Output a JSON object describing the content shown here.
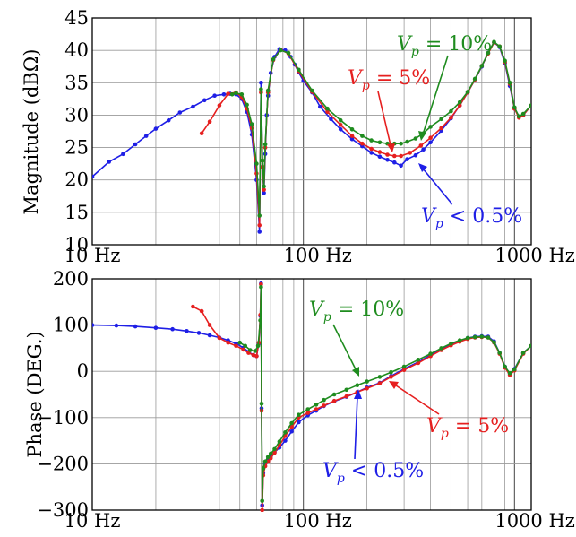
{
  "chart_data": [
    {
      "type": "line",
      "ylabel": "Magnitude (dBΩ)",
      "xscale": "log",
      "xlim": [
        10,
        1200
      ],
      "ylim": [
        10,
        45
      ],
      "x_tick_labels": [
        "10 Hz",
        "100 Hz",
        "1000 Hz"
      ],
      "y_ticks": [
        10,
        15,
        20,
        25,
        30,
        35,
        40,
        45
      ],
      "grid": true,
      "series": [
        {
          "name": "Vp < 0.5%",
          "color": "#1f1fe6",
          "x": [
            10,
            12,
            14,
            16,
            18,
            20,
            23,
            26,
            30,
            34,
            38,
            42,
            45,
            48,
            51,
            54,
            57,
            60,
            62,
            63,
            64,
            65,
            66,
            67,
            68,
            70,
            73,
            77,
            82,
            87,
            91,
            95,
            100,
            110,
            120,
            135,
            150,
            170,
            190,
            210,
            230,
            250,
            270,
            290,
            310,
            340,
            370,
            400,
            450,
            500,
            550,
            600,
            650,
            700,
            750,
            800,
            850,
            900,
            950,
            1000,
            1050,
            1100,
            1200
          ],
          "y": [
            20.5,
            22.8,
            24.0,
            25.5,
            26.8,
            27.9,
            29.2,
            30.4,
            31.3,
            32.3,
            33.0,
            33.2,
            33.3,
            33.2,
            32.5,
            30.5,
            27.0,
            20.0,
            12.0,
            35.0,
            22.0,
            18.0,
            24.0,
            30.0,
            33.0,
            36.5,
            39.0,
            40.2,
            40.0,
            39.0,
            37.8,
            36.6,
            35.3,
            33.5,
            31.3,
            29.4,
            27.8,
            26.3,
            25.2,
            24.2,
            23.6,
            23.1,
            22.7,
            22.2,
            23.2,
            23.8,
            24.7,
            25.8,
            27.6,
            29.5,
            31.5,
            33.5,
            35.5,
            37.5,
            39.6,
            41.2,
            40.5,
            38.0,
            34.5,
            31.0,
            29.8,
            30.0,
            31.5
          ]
        },
        {
          "name": "Vp = 5%",
          "color": "#e61f1f",
          "x": [
            33,
            36,
            40,
            44,
            48,
            51,
            54,
            57,
            60,
            62,
            63,
            64,
            65,
            66,
            68,
            72,
            78,
            85,
            95,
            110,
            130,
            150,
            170,
            190,
            210,
            230,
            250,
            270,
            290,
            320,
            360,
            400,
            450,
            500,
            550,
            600,
            650,
            700,
            750,
            800,
            850,
            900,
            950,
            1000,
            1050,
            1100,
            1200
          ],
          "y": [
            27.2,
            29.0,
            31.5,
            33.3,
            33.5,
            32.8,
            31.0,
            28.0,
            21.0,
            13.0,
            33.5,
            22.0,
            18.5,
            25.0,
            33.5,
            38.5,
            40.1,
            39.5,
            36.8,
            33.6,
            30.5,
            28.5,
            26.8,
            25.6,
            24.8,
            24.3,
            23.9,
            23.7,
            23.7,
            24.2,
            25.3,
            26.5,
            28.0,
            29.6,
            31.5,
            33.5,
            35.5,
            37.6,
            39.5,
            41.2,
            40.6,
            38.2,
            34.8,
            31.0,
            29.6,
            30.0,
            31.5
          ]
        },
        {
          "name": "Vp = 10%",
          "color": "#1f8c1f",
          "x": [
            46,
            48,
            51,
            54,
            57,
            60,
            62,
            63,
            64,
            65,
            66,
            68,
            72,
            78,
            85,
            95,
            110,
            130,
            150,
            170,
            190,
            210,
            230,
            250,
            270,
            290,
            310,
            340,
            370,
            400,
            450,
            500,
            550,
            600,
            650,
            700,
            750,
            800,
            850,
            900,
            950,
            1000,
            1050,
            1100,
            1200
          ],
          "y": [
            33.2,
            33.4,
            33.2,
            31.6,
            28.6,
            22.5,
            14.5,
            34.0,
            23.0,
            19.0,
            25.5,
            33.8,
            38.6,
            40.0,
            39.6,
            37.0,
            33.8,
            31.0,
            29.2,
            27.8,
            26.8,
            26.1,
            25.8,
            25.6,
            25.6,
            25.6,
            25.9,
            26.4,
            27.2,
            28.2,
            29.4,
            30.6,
            32.0,
            33.6,
            35.6,
            37.6,
            39.6,
            41.3,
            40.6,
            38.4,
            35.0,
            31.2,
            29.8,
            30.2,
            31.5
          ]
        }
      ],
      "annotations": [
        {
          "base": "V",
          "sub": "p",
          "rest": " = 10%",
          "color": "#1f8c1f"
        },
        {
          "base": "V",
          "sub": "p",
          "rest": " = 5%",
          "color": "#e61f1f"
        },
        {
          "base": "V",
          "sub": "p",
          "rest": " < 0.5%",
          "color": "#1f1fe6"
        }
      ]
    },
    {
      "type": "line",
      "ylabel": "Phase (DEG.)",
      "xscale": "log",
      "xlim": [
        10,
        1200
      ],
      "ylim": [
        -300,
        200
      ],
      "x_tick_labels": [
        "10 Hz",
        "100 Hz",
        "1000 Hz"
      ],
      "y_tick_labels": [
        "−300",
        "−200",
        "−100",
        "0",
        "100",
        "200"
      ],
      "y_ticks": [
        -300,
        -200,
        -100,
        0,
        100,
        200
      ],
      "grid": true,
      "series": [
        {
          "name": "Vp < 0.5%",
          "color": "#1f1fe6",
          "x": [
            10,
            13,
            16,
            20,
            24,
            28,
            32,
            36,
            40,
            44,
            48,
            52,
            55,
            58,
            60,
            61.5,
            62.5,
            63,
            63.4,
            63.8,
            64.5,
            66,
            68,
            70,
            73,
            77,
            82,
            88,
            95,
            105,
            115,
            125,
            140,
            160,
            180,
            200,
            230,
            260,
            300,
            350,
            400,
            450,
            500,
            550,
            600,
            650,
            700,
            750,
            800,
            850,
            900,
            950,
            1000,
            1100,
            1200
          ],
          "y": [
            100,
            99,
            97,
            94,
            91,
            87,
            83,
            78,
            73,
            67,
            60,
            51,
            42,
            35,
            33,
            60,
            120,
            190,
            -80,
            -290,
            -220,
            -200,
            -190,
            -185,
            -175,
            -165,
            -150,
            -130,
            -110,
            -95,
            -85,
            -75,
            -65,
            -55,
            -45,
            -35,
            -25,
            -10,
            5,
            20,
            35,
            48,
            58,
            66,
            72,
            75,
            76,
            75,
            65,
            40,
            10,
            -5,
            5,
            40,
            55
          ]
        },
        {
          "name": "Vp = 5%",
          "color": "#e61f1f",
          "x": [
            30,
            33,
            36,
            40,
            44,
            48,
            52,
            55,
            58,
            60,
            61.5,
            62.5,
            63,
            63.4,
            63.8,
            64.5,
            66,
            68,
            70,
            73,
            77,
            82,
            88,
            95,
            105,
            115,
            125,
            140,
            160,
            180,
            200,
            230,
            260,
            300,
            350,
            400,
            450,
            500,
            550,
            600,
            650,
            700,
            750,
            800,
            850,
            900,
            950,
            1000,
            1100,
            1200
          ],
          "y": [
            140,
            130,
            100,
            72,
            62,
            55,
            47,
            40,
            35,
            33,
            62,
            122,
            188,
            -85,
            -300,
            -225,
            -205,
            -195,
            -188,
            -176,
            -160,
            -140,
            -120,
            -100,
            -90,
            -82,
            -74,
            -64,
            -54,
            -45,
            -37,
            -26,
            -12,
            3,
            18,
            33,
            46,
            56,
            64,
            70,
            73,
            74,
            73,
            62,
            38,
            8,
            -8,
            2,
            38,
            55
          ]
        },
        {
          "name": "Vp = 10%",
          "color": "#1f8c1f",
          "x": [
            50,
            53,
            56,
            59,
            61,
            62.5,
            63,
            63.4,
            63.8,
            64.5,
            66,
            68,
            70,
            73,
            77,
            82,
            88,
            95,
            105,
            115,
            125,
            140,
            160,
            180,
            200,
            230,
            260,
            300,
            350,
            400,
            450,
            500,
            550,
            600,
            650,
            700,
            750,
            800,
            850,
            900,
            950,
            1000,
            1100,
            1200
          ],
          "y": [
            62,
            55,
            46,
            44,
            55,
            110,
            182,
            -70,
            -280,
            -210,
            -195,
            -185,
            -178,
            -168,
            -152,
            -132,
            -112,
            -94,
            -82,
            -72,
            -62,
            -50,
            -40,
            -30,
            -22,
            -12,
            -2,
            10,
            25,
            38,
            50,
            60,
            67,
            72,
            74,
            75,
            73,
            63,
            40,
            10,
            -4,
            4,
            40,
            55
          ]
        }
      ],
      "annotations": [
        {
          "base": "V",
          "sub": "p",
          "rest": " = 10%",
          "color": "#1f8c1f"
        },
        {
          "base": "V",
          "sub": "p",
          "rest": " = 5%",
          "color": "#e61f1f"
        },
        {
          "base": "V",
          "sub": "p",
          "rest": " < 0.5%",
          "color": "#1f1fe6"
        }
      ]
    }
  ]
}
